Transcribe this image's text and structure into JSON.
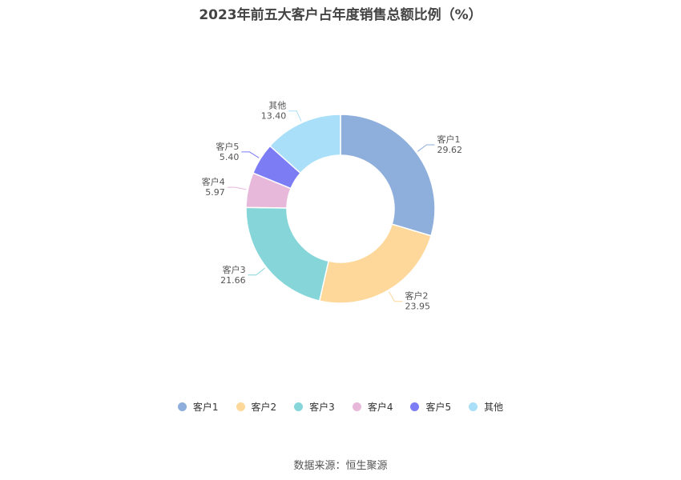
{
  "chart_data": {
    "type": "pie",
    "title": "2023年前五大客户占年度销售总额比例（%）",
    "source": "数据来源：恒生聚源",
    "categories": [
      "客户1",
      "客户2",
      "客户3",
      "客户4",
      "客户5",
      "其他"
    ],
    "values": [
      29.62,
      23.95,
      21.66,
      5.97,
      5.4,
      13.4
    ],
    "value_labels": [
      "29.62",
      "23.95",
      "21.66",
      "5.97",
      "5.40",
      "13.40"
    ],
    "colors": [
      "#8eaedb",
      "#fdd89a",
      "#86d6d9",
      "#e8b8da",
      "#7c7cf5",
      "#a9dff8"
    ],
    "donut": true,
    "legend_position": "bottom"
  }
}
